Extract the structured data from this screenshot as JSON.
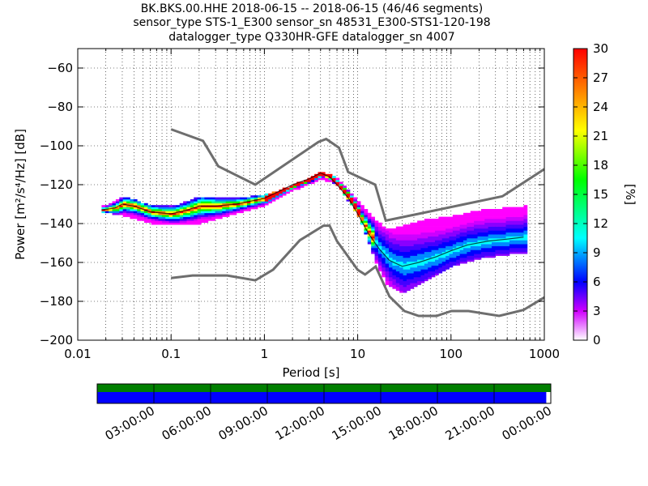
{
  "header": {
    "title_line1": "BK.BKS.00.HHE   2018-06-15 -- 2018-06-15  (46/46 segments)",
    "title_line2": "sensor_type STS-1_E300 sensor_sn 48531_E300-STS1-120-198",
    "title_line3": "datalogger_type Q330HR-GFE datalogger_sn 4007"
  },
  "chart_data": {
    "type": "heatmap",
    "xlabel": "Period [s]",
    "ylabel": "Power [m²/s⁴/Hz] [dB]",
    "x_scale": "log",
    "xlim": [
      0.01,
      1000
    ],
    "ylim": [
      -200,
      -50
    ],
    "x_ticks": [
      "0.01",
      "0.1",
      "1",
      "10",
      "100",
      "1000"
    ],
    "y_ticks": [
      "−200",
      "−180",
      "−160",
      "−140",
      "−120",
      "−100",
      "−80",
      "−60"
    ],
    "colorbar": {
      "label": "[%]",
      "range": [
        0,
        30
      ],
      "ticks": [
        "0",
        "3",
        "6",
        "9",
        "12",
        "15",
        "18",
        "21",
        "24",
        "27",
        "30"
      ]
    },
    "noise_models": [
      {
        "name": "high_noise_model",
        "x": [
          0.1,
          0.22,
          0.32,
          0.8,
          3.8,
          4.6,
          6.3,
          7.9,
          15.4,
          20,
          354.8,
          1000
        ],
        "y": [
          -91.5,
          -97.4,
          -110.5,
          -120,
          -98,
          -96.5,
          -101,
          -113.5,
          -120,
          -138.5,
          -126,
          -112
        ]
      },
      {
        "name": "low_noise_model",
        "x": [
          0.1,
          0.17,
          0.4,
          0.8,
          1.24,
          2.4,
          4.3,
          5,
          6,
          10,
          12,
          15.6,
          21.9,
          31.6,
          45,
          70,
          101,
          154,
          328,
          600,
          1000
        ],
        "y": [
          -168,
          -166.7,
          -166.7,
          -169.2,
          -163.7,
          -148.6,
          -141.1,
          -141.1,
          -149,
          -163.8,
          -166.2,
          -162.1,
          -177.5,
          -185,
          -187.5,
          -187.5,
          -185,
          -185,
          -187.5,
          -184.4,
          -178
        ]
      }
    ],
    "mode_curve": {
      "x": [
        0.018,
        0.025,
        0.03,
        0.04,
        0.06,
        0.1,
        0.15,
        0.2,
        0.3,
        0.5,
        1,
        1.5,
        2,
        3,
        4,
        5,
        6,
        8,
        10,
        13,
        17,
        22,
        30,
        45,
        70,
        100,
        150,
        250,
        400,
        600
      ],
      "y": [
        -133,
        -132,
        -130,
        -131,
        -134,
        -135,
        -133,
        -131,
        -131,
        -130,
        -127,
        -123,
        -120,
        -117,
        -114,
        -116,
        -120,
        -127,
        -135,
        -145,
        -153,
        -159,
        -162,
        -160,
        -157,
        -154,
        -151,
        -149,
        -148,
        -147
      ]
    },
    "bands": [
      {
        "x": [
          0.018,
          0.03,
          0.06,
          0.1,
          0.2,
          0.5,
          1,
          2,
          4,
          6,
          10,
          15,
          20,
          30,
          50,
          100,
          200,
          600
        ],
        "y_top": [
          -131,
          -126,
          -131,
          -131,
          -126,
          -127,
          -125,
          -120,
          -113,
          -117,
          -129,
          -138,
          -143,
          -141,
          -138,
          -136,
          -133,
          -131
        ]
      },
      {
        "x": [
          0.018,
          0.03,
          0.06,
          0.1,
          0.2,
          0.5,
          1,
          2,
          4,
          6,
          10,
          15,
          20,
          30,
          50,
          100,
          200,
          600
        ],
        "y_bottom": [
          -134,
          -136,
          -140,
          -141,
          -140,
          -135,
          -131,
          -123,
          -117,
          -121,
          -137,
          -160,
          -172,
          -176,
          -170,
          -162,
          -158,
          -155
        ]
      }
    ]
  },
  "timeline": {
    "ticks": [
      "03:00:00",
      "06:00:00",
      "09:00:00",
      "12:00:00",
      "15:00:00",
      "18:00:00",
      "21:00:00",
      "00:00:00"
    ],
    "coverage_fraction": 0.99,
    "colors": {
      "top_bar": "#007f00",
      "data_bar": "#0000ff"
    }
  }
}
